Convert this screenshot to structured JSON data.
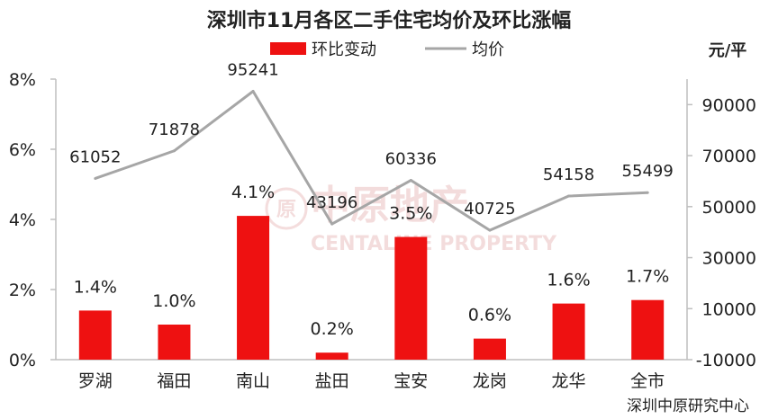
{
  "colors": {
    "bar": "#ee1111",
    "line": "#a6a6a6",
    "axis": "#bfbfbf",
    "watermark": "#e6b3b3"
  },
  "watermark": {
    "cn": "中原地产",
    "en": "CENTALINE PROPERTY",
    "seal": "原"
  },
  "chart_data": {
    "type": "bar",
    "title": "深圳市11月各区二手住宅均价及环比涨幅",
    "categories": [
      "罗湖",
      "福田",
      "南山",
      "盐田",
      "宝安",
      "龙岗",
      "龙华",
      "全市"
    ],
    "series": [
      {
        "name": "环比变动",
        "type": "bar",
        "axis": "left",
        "values": [
          1.4,
          1.0,
          4.1,
          0.2,
          3.5,
          0.6,
          1.6,
          1.7
        ],
        "labels": [
          "1.4%",
          "1.0%",
          "4.1%",
          "0.2%",
          "3.5%",
          "0.6%",
          "1.6%",
          "1.7%"
        ]
      },
      {
        "name": "均价",
        "type": "line",
        "axis": "right",
        "values": [
          61052,
          71878,
          95241,
          43196,
          60336,
          40725,
          54158,
          55499
        ],
        "labels": [
          "61052",
          "71878",
          "95241",
          "43196",
          "60336",
          "40725",
          "54158",
          "55499"
        ]
      }
    ],
    "y_left": {
      "range": [
        0,
        8
      ],
      "ticks": [
        0,
        2,
        4,
        6,
        8
      ],
      "tick_labels": [
        "0%",
        "2%",
        "4%",
        "6%",
        "8%"
      ]
    },
    "y_right": {
      "label": "元/平",
      "range": [
        -10000,
        100000
      ],
      "ticks": [
        -10000,
        10000,
        30000,
        50000,
        70000,
        90000
      ],
      "tick_labels": [
        "-10000",
        "10000",
        "30000",
        "50000",
        "70000",
        "90000"
      ]
    },
    "grid": false,
    "legend_position": "top-center",
    "source_note": "深圳中原研究中心"
  }
}
